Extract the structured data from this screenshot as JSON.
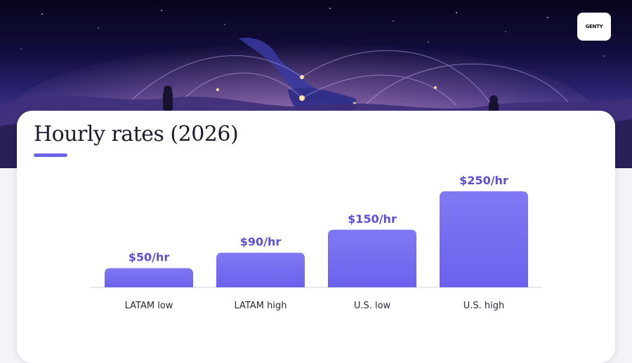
{
  "brand": {
    "logo_text": "GENTY"
  },
  "card": {
    "title": "Hourly rates (2026)"
  },
  "colors": {
    "accent": "#6b62e8",
    "bar_top": "#8178f3",
    "bar_bottom": "#6a62ec",
    "label": "#5a50d6"
  },
  "chart_data": {
    "type": "bar",
    "title": "Hourly rates (2026)",
    "categories": [
      "LATAM low",
      "LATAM high",
      "U.S. low",
      "U.S. high"
    ],
    "values": [
      50,
      90,
      150,
      250
    ],
    "value_labels": [
      "$50/hr",
      "$90/hr",
      "$150/hr",
      "$250/hr"
    ],
    "ylim": [
      0,
      250
    ],
    "xlabel": "",
    "ylabel": "",
    "grid": false,
    "legend": "none"
  }
}
